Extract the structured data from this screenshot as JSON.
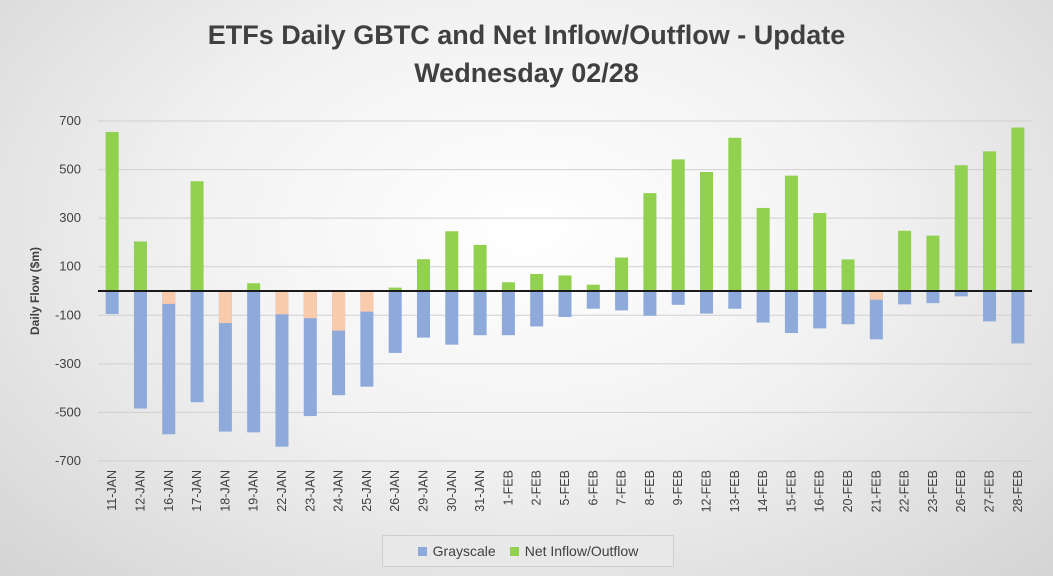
{
  "chart_data": {
    "type": "bar",
    "title": [
      "ETFs Daily GBTC and Net Inflow/Outflow - Update",
      "Wednesday 02/28"
    ],
    "ylabel": "Daily Flow ($m)",
    "xlabel": "",
    "ylim": [
      -700,
      700
    ],
    "yticks": [
      700,
      500,
      300,
      100,
      -100,
      -300,
      -500,
      -700
    ],
    "categories": [
      "11-JAN",
      "12-JAN",
      "16-JAN",
      "17-JAN",
      "18-JAN",
      "19-JAN",
      "22-JAN",
      "23-JAN",
      "24-JAN",
      "25-JAN",
      "26-JAN",
      "29-JAN",
      "30-JAN",
      "31-JAN",
      "1-FEB",
      "2-FEB",
      "5-FEB",
      "6-FEB",
      "7-FEB",
      "8-FEB",
      "9-FEB",
      "12-FEB",
      "13-FEB",
      "14-FEB",
      "15-FEB",
      "16-FEB",
      "20-FEB",
      "21-FEB",
      "22-FEB",
      "23-FEB",
      "26-FEB",
      "27-FEB",
      "28-FEB"
    ],
    "series": [
      {
        "name": "Grayscale",
        "color": "#8eaadb",
        "values": [
          -95,
          -484,
          -590,
          -458,
          -579,
          -582,
          -641,
          -515,
          -429,
          -394,
          -255,
          -192,
          -221,
          -182,
          -182,
          -146,
          -107,
          -73,
          -80,
          -102,
          -57,
          -93,
          -73,
          -130,
          -173,
          -154,
          -137,
          -199,
          -55,
          -50,
          -22,
          -125,
          -216
        ]
      },
      {
        "name": "Net Inflow/Outflow",
        "color": "#92d050",
        "values": [
          655,
          204,
          -53,
          452,
          -132,
          32,
          -96,
          -112,
          -163,
          -85,
          14,
          131,
          246,
          190,
          36,
          70,
          64,
          26,
          138,
          403,
          542,
          490,
          631,
          342,
          475,
          321,
          130,
          -36,
          248,
          228,
          518,
          575,
          673
        ]
      }
    ],
    "negative_net_color": "#f8cbad",
    "grid": true,
    "legend_position": "bottom"
  }
}
